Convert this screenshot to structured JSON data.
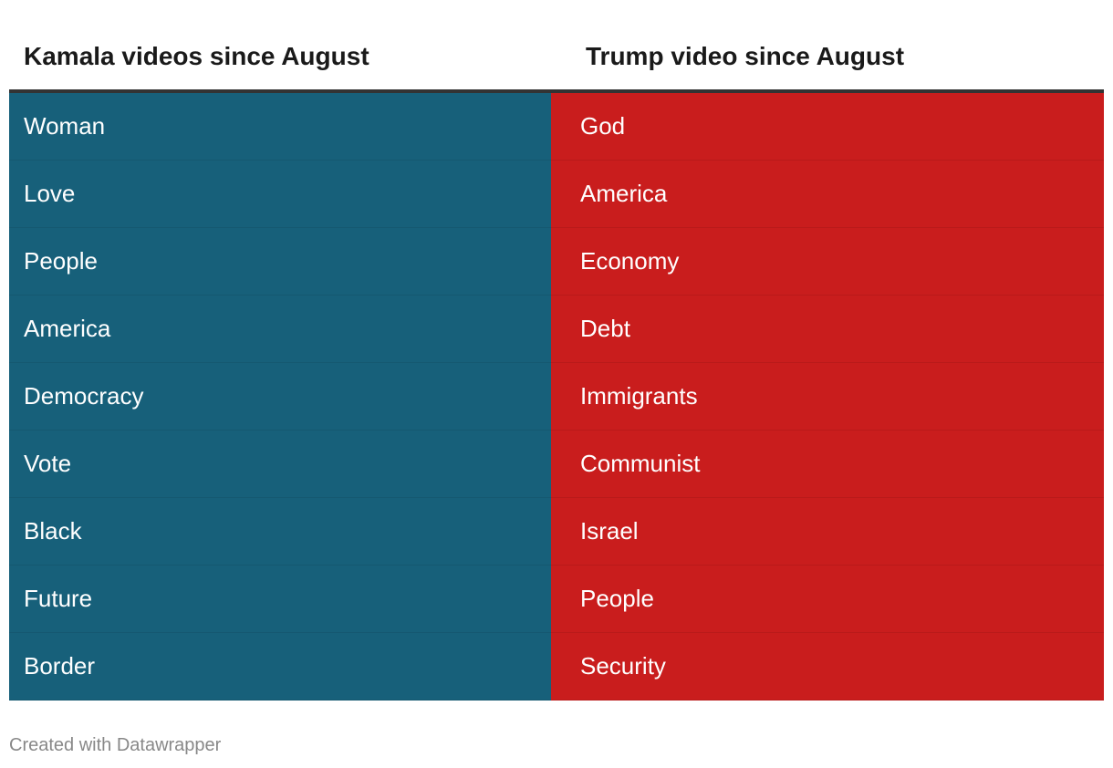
{
  "table": {
    "headers": [
      "Kamala videos since August",
      "Trump video since August"
    ],
    "rows": [
      [
        "Woman",
        "God"
      ],
      [
        "Love",
        "America"
      ],
      [
        "People",
        "Economy"
      ],
      [
        "America",
        "Debt"
      ],
      [
        "Democracy",
        "Immigrants"
      ],
      [
        "Vote",
        "Communist"
      ],
      [
        "Black",
        "Israel"
      ],
      [
        "Future",
        "People"
      ],
      [
        "Border",
        "Security"
      ]
    ]
  },
  "footer": "Created with Datawrapper"
}
